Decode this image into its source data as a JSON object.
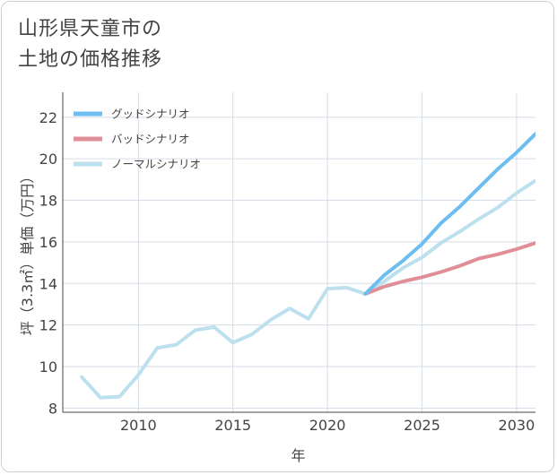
{
  "title_line1": "山形県天童市の",
  "title_line2": "土地の価格推移",
  "chart_data": {
    "type": "line",
    "xlabel": "年",
    "ylabel": "坪（3.3㎡）単価（万円）",
    "xlim": [
      2006,
      2031
    ],
    "ylim": [
      7.8,
      23.2
    ],
    "xticks": [
      2010,
      2015,
      2020,
      2025,
      2030
    ],
    "yticks": [
      8,
      10,
      12,
      14,
      16,
      18,
      20,
      22
    ],
    "grid": true,
    "legend_position": "top-left",
    "series": [
      {
        "name": "グッドシナリオ",
        "color": "#6cbdf0",
        "x": [
          2022,
          2023,
          2024,
          2025,
          2026,
          2027,
          2028,
          2029,
          2030,
          2031
        ],
        "y": [
          13.5,
          14.4,
          15.1,
          15.9,
          16.9,
          17.7,
          18.6,
          19.5,
          20.3,
          21.2
        ]
      },
      {
        "name": "バッドシナリオ",
        "color": "#e08f98",
        "x": [
          2022,
          2023,
          2024,
          2025,
          2026,
          2027,
          2028,
          2029,
          2030,
          2031
        ],
        "y": [
          13.5,
          13.85,
          14.1,
          14.3,
          14.55,
          14.85,
          15.2,
          15.4,
          15.65,
          15.95
        ]
      },
      {
        "name": "ノーマルシナリオ",
        "color": "#bde0ef",
        "x": [
          2007,
          2008,
          2009,
          2010,
          2011,
          2012,
          2013,
          2014,
          2015,
          2016,
          2017,
          2018,
          2019,
          2020,
          2021,
          2022,
          2023,
          2024,
          2025,
          2026,
          2027,
          2028,
          2029,
          2030,
          2031
        ],
        "y": [
          9.5,
          8.5,
          8.55,
          9.6,
          10.9,
          11.05,
          11.75,
          11.9,
          11.15,
          11.55,
          12.25,
          12.8,
          12.3,
          13.75,
          13.8,
          13.5,
          14.1,
          14.75,
          15.25,
          15.95,
          16.5,
          17.1,
          17.65,
          18.35,
          18.95
        ]
      }
    ]
  }
}
